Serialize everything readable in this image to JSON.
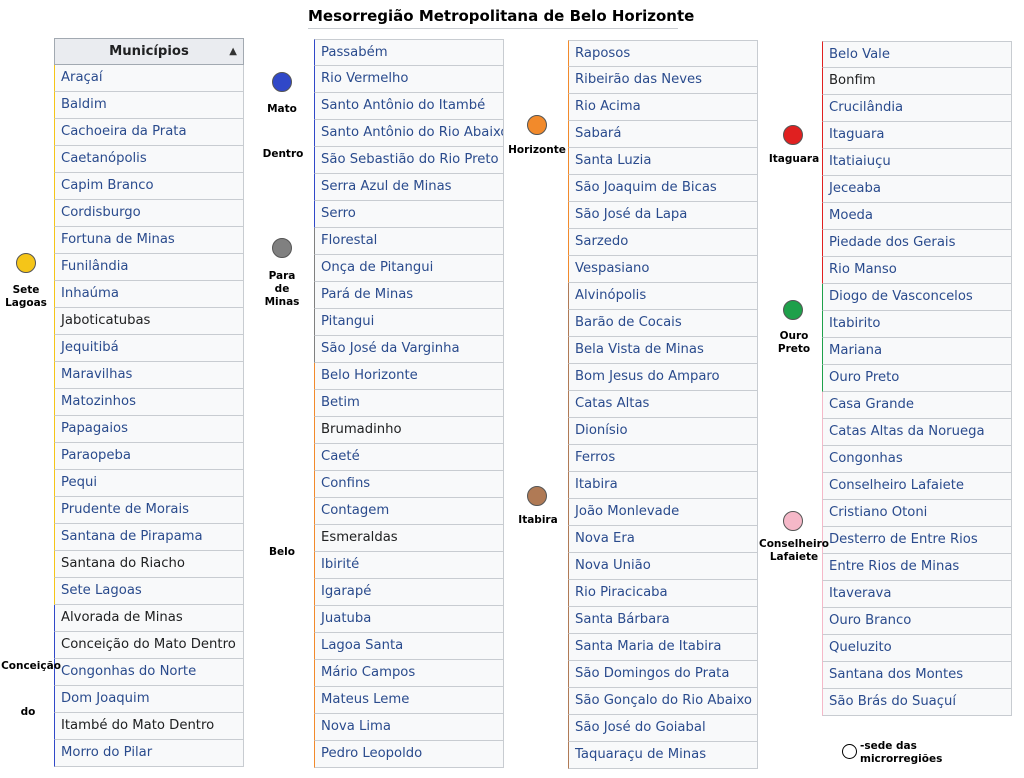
{
  "title": "Mesorregião Metropolitana de Belo Horizonte",
  "table_header": "Municípios",
  "colors": {
    "sete_lagoas": "#f5c518",
    "mato_dentro": "#3048c8",
    "para_de_minas": "#808080",
    "belo_horizonte": "#f28a2b",
    "itabira": "#b07a55",
    "itaguara": "#e02020",
    "ouro_preto": "#1ea04a",
    "conselheiro_lafaiete": "#f5b8c8"
  },
  "columns": [
    [
      {
        "name": "Araçaí",
        "link": true
      },
      {
        "name": "Baldim",
        "link": true
      },
      {
        "name": "Cachoeira da Prata",
        "link": true
      },
      {
        "name": "Caetanópolis",
        "link": true
      },
      {
        "name": "Capim Branco",
        "link": true
      },
      {
        "name": "Cordisburgo",
        "link": true
      },
      {
        "name": "Fortuna de Minas",
        "link": true
      },
      {
        "name": "Funilândia",
        "link": true
      },
      {
        "name": "Inhaúma",
        "link": true
      },
      {
        "name": "Jaboticatubas",
        "link": false
      },
      {
        "name": "Jequitibá",
        "link": true
      },
      {
        "name": "Maravilhas",
        "link": true
      },
      {
        "name": "Matozinhos",
        "link": true
      },
      {
        "name": "Papagaios",
        "link": true
      },
      {
        "name": "Paraopeba",
        "link": true
      },
      {
        "name": "Pequi",
        "link": true
      },
      {
        "name": "Prudente de Morais",
        "link": true
      },
      {
        "name": "Santana de Pirapama",
        "link": true
      },
      {
        "name": "Santana do Riacho",
        "link": false
      },
      {
        "name": "Sete Lagoas",
        "link": true
      },
      {
        "name": "Alvorada de Minas",
        "link": false
      },
      {
        "name": "Conceição do Mato Dentro",
        "link": false
      },
      {
        "name": "Congonhas do Norte",
        "link": true
      },
      {
        "name": "Dom Joaquim",
        "link": true
      },
      {
        "name": "Itambé do Mato Dentro",
        "link": false
      },
      {
        "name": "Morro do Pilar",
        "link": true
      }
    ],
    [
      {
        "name": "Passabém",
        "link": true
      },
      {
        "name": "Rio Vermelho",
        "link": true
      },
      {
        "name": "Santo Antônio do Itambé",
        "link": true
      },
      {
        "name": "Santo Antônio do Rio Abaixo",
        "link": true
      },
      {
        "name": "São Sebastião do Rio Preto",
        "link": true
      },
      {
        "name": "Serra Azul de Minas",
        "link": true
      },
      {
        "name": "Serro",
        "link": true
      },
      {
        "name": "Florestal",
        "link": true
      },
      {
        "name": "Onça de Pitangui",
        "link": true
      },
      {
        "name": "Pará de Minas",
        "link": true
      },
      {
        "name": "Pitangui",
        "link": true
      },
      {
        "name": "São José da Varginha",
        "link": true
      },
      {
        "name": "Belo Horizonte",
        "link": true
      },
      {
        "name": "Betim",
        "link": true
      },
      {
        "name": "Brumadinho",
        "link": false
      },
      {
        "name": "Caeté",
        "link": true
      },
      {
        "name": "Confins",
        "link": true
      },
      {
        "name": "Contagem",
        "link": true
      },
      {
        "name": "Esmeraldas",
        "link": false
      },
      {
        "name": "Ibirité",
        "link": true
      },
      {
        "name": "Igarapé",
        "link": true
      },
      {
        "name": "Juatuba",
        "link": true
      },
      {
        "name": "Lagoa Santa",
        "link": true
      },
      {
        "name": "Mário Campos",
        "link": true
      },
      {
        "name": "Mateus Leme",
        "link": true
      },
      {
        "name": "Nova Lima",
        "link": true
      },
      {
        "name": "Pedro Leopoldo",
        "link": true
      }
    ],
    [
      {
        "name": "Raposos",
        "link": true
      },
      {
        "name": "Ribeirão das Neves",
        "link": true
      },
      {
        "name": "Rio Acima",
        "link": true
      },
      {
        "name": "Sabará",
        "link": true
      },
      {
        "name": "Santa Luzia",
        "link": true
      },
      {
        "name": "São Joaquim de Bicas",
        "link": true
      },
      {
        "name": "São José da Lapa",
        "link": true
      },
      {
        "name": "Sarzedo",
        "link": true
      },
      {
        "name": "Vespasiano",
        "link": true
      },
      {
        "name": "Alvinópolis",
        "link": true
      },
      {
        "name": "Barão de Cocais",
        "link": true
      },
      {
        "name": "Bela Vista de Minas",
        "link": true
      },
      {
        "name": "Bom Jesus do Amparo",
        "link": true
      },
      {
        "name": "Catas Altas",
        "link": true
      },
      {
        "name": "Dionísio",
        "link": true
      },
      {
        "name": "Ferros",
        "link": true
      },
      {
        "name": "Itabira",
        "link": true
      },
      {
        "name": "João Monlevade",
        "link": true
      },
      {
        "name": "Nova Era",
        "link": true
      },
      {
        "name": "Nova União",
        "link": true
      },
      {
        "name": "Rio Piracicaba",
        "link": true
      },
      {
        "name": "Santa Bárbara",
        "link": true
      },
      {
        "name": "Santa Maria de Itabira",
        "link": true
      },
      {
        "name": "São Domingos do Prata",
        "link": true
      },
      {
        "name": "São Gonçalo do Rio Abaixo",
        "link": true
      },
      {
        "name": "São José do Goiabal",
        "link": true
      },
      {
        "name": "Taquaraçu de Minas",
        "link": true
      }
    ],
    [
      {
        "name": "Belo Vale",
        "link": true
      },
      {
        "name": "Bonfim",
        "link": false
      },
      {
        "name": "Crucilândia",
        "link": true
      },
      {
        "name": "Itaguara",
        "link": true
      },
      {
        "name": "Itatiaiuçu",
        "link": true
      },
      {
        "name": "Jeceaba",
        "link": true
      },
      {
        "name": "Moeda",
        "link": true
      },
      {
        "name": "Piedade dos Gerais",
        "link": true
      },
      {
        "name": "Rio Manso",
        "link": true
      },
      {
        "name": "Diogo de Vasconcelos",
        "link": true
      },
      {
        "name": "Itabirito",
        "link": true
      },
      {
        "name": "Mariana",
        "link": true
      },
      {
        "name": "Ouro Preto",
        "link": true
      },
      {
        "name": "Casa Grande",
        "link": true
      },
      {
        "name": "Catas Altas da Noruega",
        "link": true
      },
      {
        "name": "Congonhas",
        "link": true
      },
      {
        "name": "Conselheiro Lafaiete",
        "link": true
      },
      {
        "name": "Cristiano Otoni",
        "link": true
      },
      {
        "name": "Desterro de Entre Rios",
        "link": true
      },
      {
        "name": "Entre Rios de Minas",
        "link": true
      },
      {
        "name": "Itaverava",
        "link": true
      },
      {
        "name": "Ouro Branco",
        "link": true
      },
      {
        "name": "Queluzito",
        "link": true
      },
      {
        "name": "Santana dos Montes",
        "link": true
      },
      {
        "name": "São Brás do Suaçuí",
        "link": true
      }
    ]
  ],
  "labels": {
    "sete": "Sete",
    "lagoas": "Lagoas",
    "mato": "Mato",
    "dentro": "Dentro",
    "para": "Para",
    "de": "de",
    "minas": "Minas",
    "horizonte": "Horizonte",
    "belo": "Belo",
    "itabira": "Itabira",
    "itaguara": "Itaguara",
    "ouro": "Ouro",
    "preto": "Preto",
    "conselheiro": "Conselheiro",
    "lafaiete": "Lafaiete",
    "conceicao": "Conceição",
    "do": "do"
  },
  "legend": {
    "line1": "-sede das",
    "line2": "microrregiões"
  }
}
